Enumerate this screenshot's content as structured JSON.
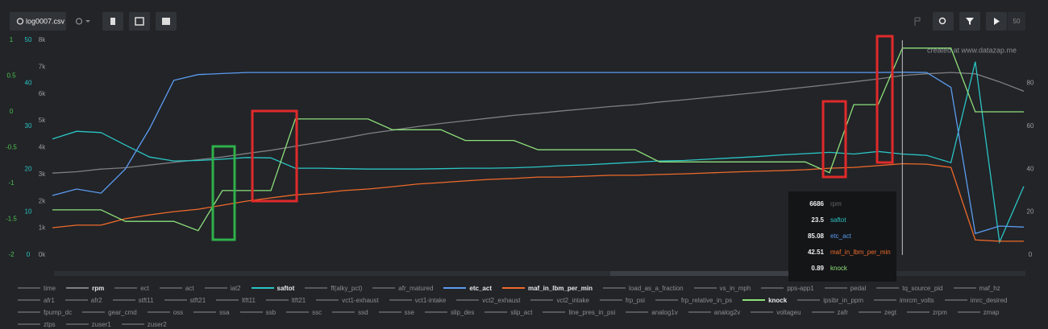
{
  "toolbar": {
    "file": "log0007.csv",
    "speed": "50"
  },
  "watermark": "created at www.datazap.me",
  "chart_data": {
    "type": "line",
    "axes": [
      {
        "color": "#4fc24f",
        "lim": [
          -2,
          1
        ],
        "ticks": [
          1,
          0.5,
          0,
          -0.5,
          -1,
          -1.5,
          -2
        ]
      },
      {
        "color": "#2bc4c4",
        "lim": [
          0,
          50
        ],
        "ticks": [
          50,
          40,
          30,
          20,
          10,
          0
        ]
      },
      {
        "color": "#9a9da2",
        "lim": [
          0,
          8000
        ],
        "ticks": [
          {
            "value": 8000,
            "label": "8k"
          },
          {
            "value": 7000,
            "label": "7k"
          },
          {
            "value": 6000,
            "label": "6k"
          },
          {
            "value": 5000,
            "label": "5k"
          },
          {
            "value": 4000,
            "label": "4k"
          },
          {
            "value": 3000,
            "label": "3k"
          },
          {
            "value": 2000,
            "label": "2k"
          },
          {
            "value": 1000,
            "label": "1k"
          },
          {
            "value": 0,
            "label": "0k"
          }
        ]
      },
      {
        "color": "#9a9da2",
        "lim": [
          0,
          100
        ],
        "ticks": [
          80,
          60,
          40,
          20,
          0
        ]
      }
    ],
    "series": [
      {
        "name": "rpm",
        "color": "#7d7f83",
        "axis": 2,
        "values": [
          3050,
          3100,
          3200,
          3250,
          3350,
          3450,
          3550,
          3650,
          3780,
          3900,
          4050,
          4200,
          4350,
          4520,
          4650,
          4780,
          4900,
          5000,
          5100,
          5200,
          5280,
          5370,
          5450,
          5530,
          5600,
          5700,
          5780,
          5870,
          5960,
          6050,
          6150,
          6250,
          6350,
          6450,
          6560,
          6686,
          6750,
          6800,
          6750,
          6450,
          6100
        ]
      },
      {
        "name": "saftot",
        "color": "#2bc4c4",
        "axis": 1,
        "values": [
          27,
          28.8,
          28.5,
          25.6,
          22.8,
          21.9,
          22,
          22.3,
          22.7,
          22.6,
          20.2,
          20.2,
          20.1,
          20,
          20,
          20,
          20.1,
          20.2,
          20.2,
          20.3,
          20.5,
          20.8,
          21,
          21.3,
          21.6,
          21.9,
          22,
          22.3,
          22.6,
          22.9,
          23.3,
          23.6,
          23.9,
          23.5,
          24.1,
          23.5,
          23.2,
          21.5,
          45,
          3,
          16
        ]
      },
      {
        "name": "etc_act",
        "color": "#5b9cf0",
        "axis": 3,
        "values": [
          27.7,
          30.7,
          28.8,
          40,
          58.8,
          81.3,
          84,
          84.5,
          85,
          85,
          85,
          85,
          85,
          85,
          85,
          85,
          85,
          85,
          85,
          85,
          85,
          85,
          85,
          85,
          85,
          85,
          85,
          85,
          85,
          85,
          85,
          85,
          85,
          85,
          85,
          85.08,
          85,
          78,
          10,
          13.5,
          13
        ]
      },
      {
        "name": "maf_in_lbm_per_min",
        "color": "#f06a2a",
        "axis": 3,
        "values": [
          12.7,
          13.9,
          13.9,
          16.9,
          18.7,
          20.2,
          21.3,
          23.2,
          25.1,
          26.6,
          28,
          28.8,
          30,
          30.7,
          31.8,
          33,
          33.7,
          34.5,
          35.2,
          35.6,
          36.3,
          36.3,
          36.7,
          37.1,
          37.1,
          37.5,
          37.8,
          38.2,
          38.6,
          39,
          39.3,
          39.7,
          40.4,
          40.8,
          41.6,
          42.51,
          42.3,
          40.8,
          7,
          6.4,
          6.4
        ]
      },
      {
        "name": "knock",
        "color": "#8ee07a",
        "axis": 0,
        "values": [
          -1.37,
          -1.37,
          -1.37,
          -1.53,
          -1.53,
          -1.53,
          -1.66,
          -1.1,
          -1.1,
          -1.1,
          -0.1,
          -0.1,
          -0.1,
          -0.1,
          -0.25,
          -0.25,
          -0.25,
          -0.4,
          -0.4,
          -0.4,
          -0.53,
          -0.53,
          -0.53,
          -0.53,
          -0.53,
          -0.7,
          -0.7,
          -0.7,
          -0.7,
          -0.7,
          -0.7,
          -0.7,
          -0.85,
          0.1,
          0.1,
          0.89,
          0.89,
          0.89,
          0,
          0,
          0
        ]
      }
    ],
    "legend": [
      "time",
      "rpm",
      "ect",
      "act",
      "iat2",
      "saftot",
      "ff(alky_pct)",
      "afr_matured",
      "etc_act",
      "maf_in_lbm_per_min",
      "load_as_a_fraction",
      "vs_in_mph",
      "pps-app1",
      "pedal",
      "tq_source_pid",
      "maf_hz",
      "afr1",
      "afr2",
      "stft11",
      "stft21",
      "ltft11",
      "ltft21",
      "vct1-exhaust",
      "vct1-intake",
      "vct2_exhaust",
      "vct2_intake",
      "frp_psi",
      "frp_relative_in_ps",
      "knock",
      "ipsibr_in_ppm",
      "imrcm_volts",
      "imrc_desired",
      "fpump_dc",
      "gear_cmd",
      "oss",
      "ssa",
      "ssb",
      "ssc",
      "ssd",
      "sse",
      "slip_des",
      "slip_act",
      "line_pres_in_psi",
      "analog1v",
      "analog2v",
      "voltageu",
      "zafr",
      "zegt",
      "zrpm",
      "zmap",
      "ztps",
      "zuser1",
      "zuser2"
    ]
  }
}
